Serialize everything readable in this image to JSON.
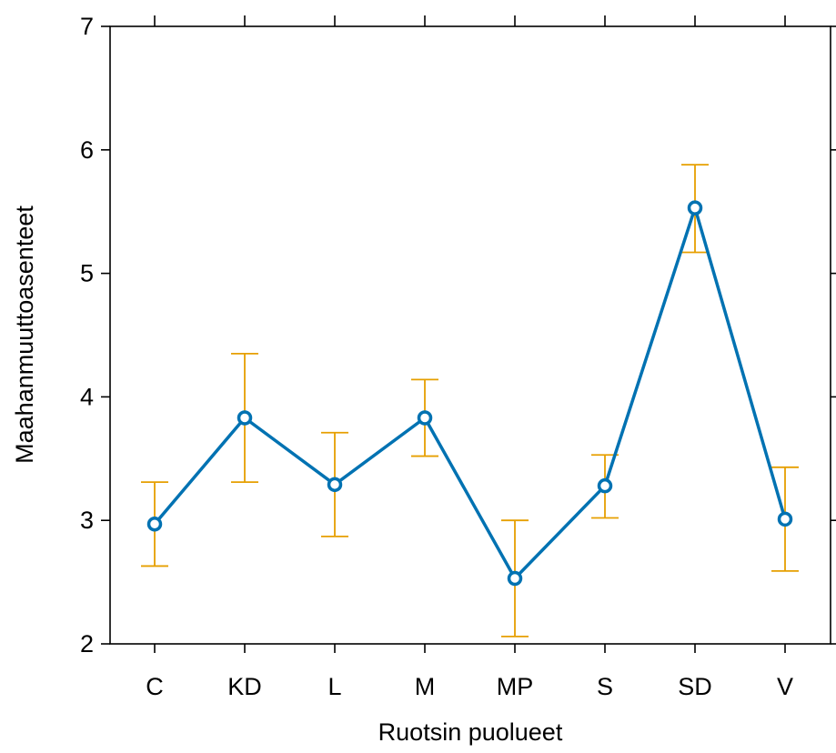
{
  "chart_data": {
    "type": "line",
    "xlabel": "Ruotsin puolueet",
    "ylabel": "Maahanmuuttoasenteet",
    "ylim": [
      2,
      7
    ],
    "yticks": [
      2,
      3,
      4,
      5,
      6,
      7
    ],
    "categories": [
      "C",
      "KD",
      "L",
      "M",
      "MP",
      "S",
      "SD",
      "V"
    ],
    "values": [
      2.97,
      3.83,
      3.29,
      3.83,
      2.53,
      3.28,
      5.53,
      3.01
    ],
    "error_low": [
      2.63,
      3.31,
      2.87,
      3.52,
      2.06,
      3.02,
      5.17,
      2.59
    ],
    "error_high": [
      3.31,
      4.35,
      3.71,
      4.14,
      3.0,
      3.53,
      5.88,
      3.43
    ],
    "grid": false,
    "colors": {
      "line": "#0072B2",
      "error_bars": "#E69F00"
    }
  }
}
